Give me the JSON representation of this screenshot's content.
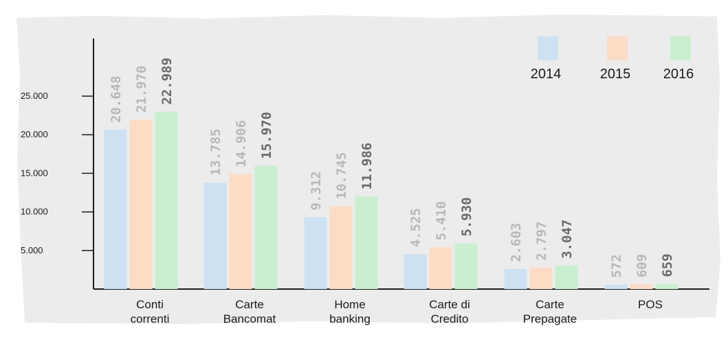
{
  "colors": {
    "panel": "#ececec",
    "axis": "#1a1a1a",
    "series": [
      "#cde1f2",
      "#fcdcc5",
      "#c9efd0"
    ],
    "value_label_light": "#b8b8b8",
    "value_label_dark": "#6a6a6a"
  },
  "chart_data": {
    "type": "bar",
    "categories": [
      [
        "Conti",
        "correnti"
      ],
      [
        "Carte",
        "Bancomat"
      ],
      [
        "Home",
        "banking"
      ],
      [
        "Carte di",
        "Credito"
      ],
      [
        "Carte",
        "Prepagate"
      ],
      [
        "POS"
      ]
    ],
    "series": [
      {
        "name": "2014",
        "values": [
          20648,
          13785,
          9312,
          4525,
          2603,
          572
        ],
        "labels": [
          "20.648",
          "13.785",
          "9.312",
          "4.525",
          "2.603",
          "572"
        ]
      },
      {
        "name": "2015",
        "values": [
          21970,
          14906,
          10745,
          5410,
          2797,
          609
        ],
        "labels": [
          "21.970",
          "14.906",
          "10.745",
          "5.410",
          "2.797",
          "609"
        ]
      },
      {
        "name": "2016",
        "values": [
          22989,
          15970,
          11986,
          5930,
          3047,
          659
        ],
        "labels": [
          "22.989",
          "15.970",
          "11.986",
          "5.930",
          "3.047",
          "659"
        ]
      }
    ],
    "y_ticks": [
      5000,
      10000,
      15000,
      20000,
      25000
    ],
    "y_tick_labels": [
      "5.000",
      "10.000",
      "15.000",
      "20.000",
      "25.000"
    ],
    "ylim": [
      0,
      30000
    ],
    "legend_position": "top-right",
    "grid": false
  }
}
